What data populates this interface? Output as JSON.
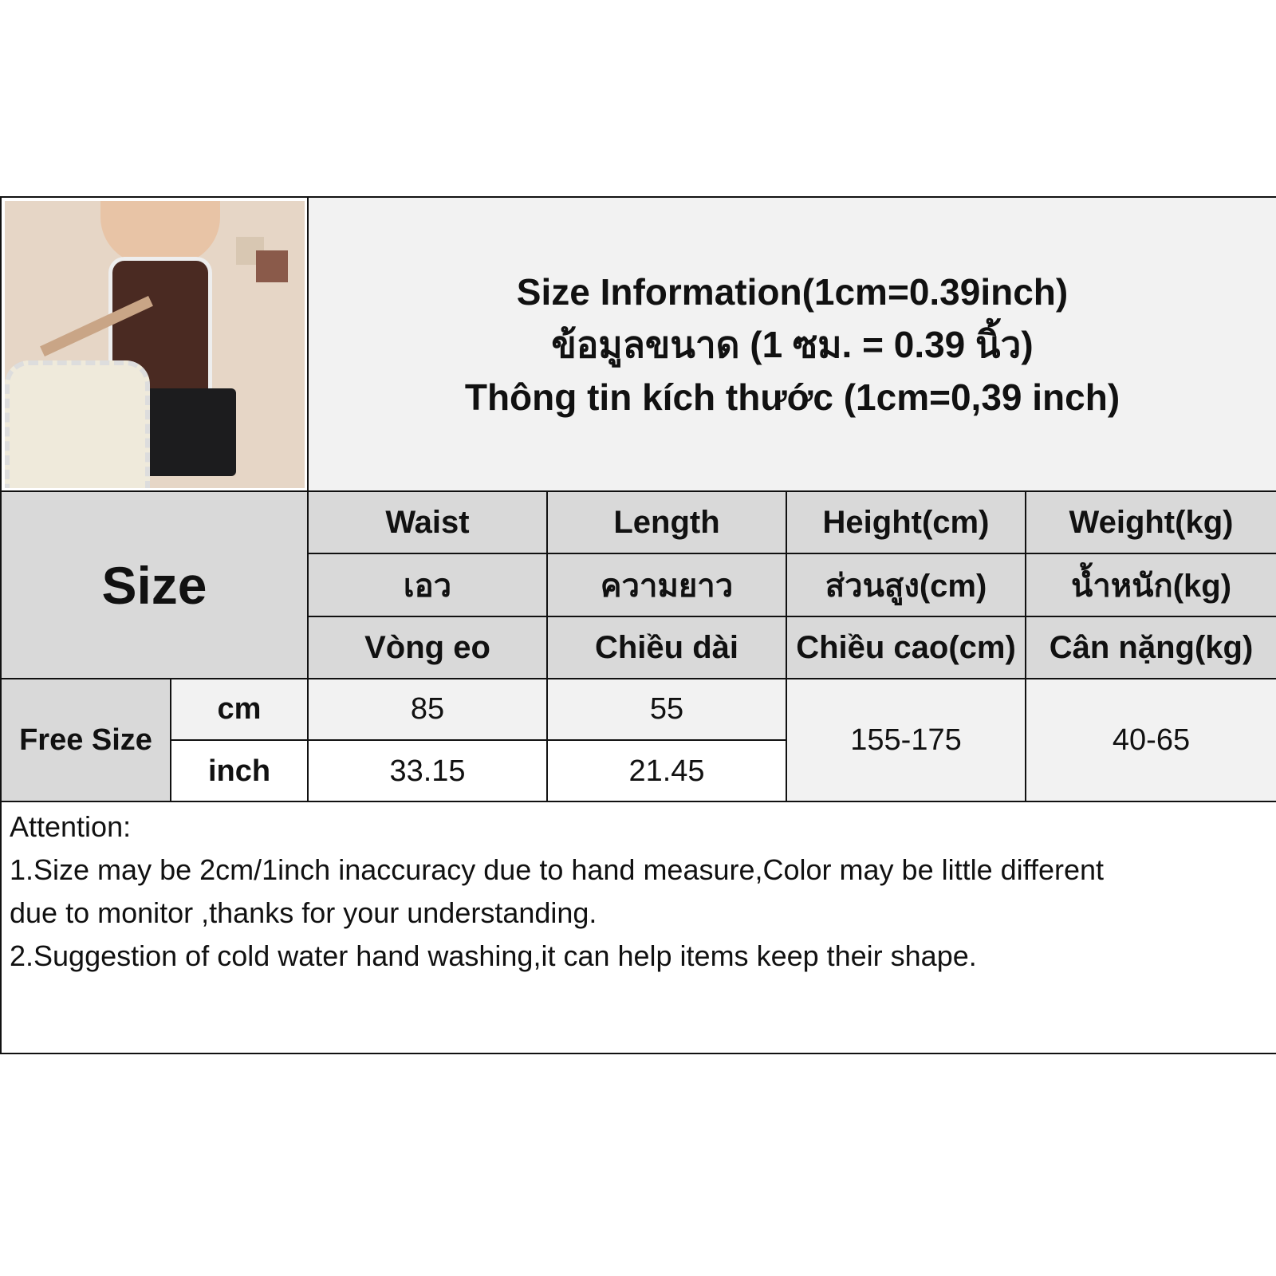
{
  "title_lines": [
    "Size Information(1cm=0.39inch)",
    "ข้อมูลขนาด (1 ซม. = 0.39 นิ้ว)",
    "Thông tin kích thước (1cm=0,39 inch)"
  ],
  "size_header": "Size",
  "columns": [
    {
      "en": "Waist",
      "th": "เอว",
      "vi": "Vòng eo"
    },
    {
      "en": "Length",
      "th": "ความยาว",
      "vi": "Chiều dài"
    },
    {
      "en": "Height(cm)",
      "th": "ส่วนสูง(cm)",
      "vi": "Chiều cao(cm)"
    },
    {
      "en": "Weight(kg)",
      "th": "น้ำหนัก(kg)",
      "vi": "Cân nặng(kg)"
    }
  ],
  "rows": {
    "size_name": "Free Size",
    "cm": {
      "unit": "cm",
      "waist": "85",
      "length": "55"
    },
    "inch": {
      "unit": "inch",
      "waist": "33.15",
      "length": "21.45"
    },
    "height": "155-175",
    "weight": "40-65"
  },
  "attention": {
    "heading": "Attention:",
    "line1": "1.Size may be 2cm/1inch inaccuracy due to hand measure,Color may be little different",
    "line1b": "due to monitor ,thanks for your understanding.",
    "line2": "2.Suggestion of cold water hand washing,it can help items keep their shape."
  },
  "colors": {
    "header_gray": "#d9d9d9",
    "light_gray": "#f2f2f2",
    "border": "#111111"
  }
}
